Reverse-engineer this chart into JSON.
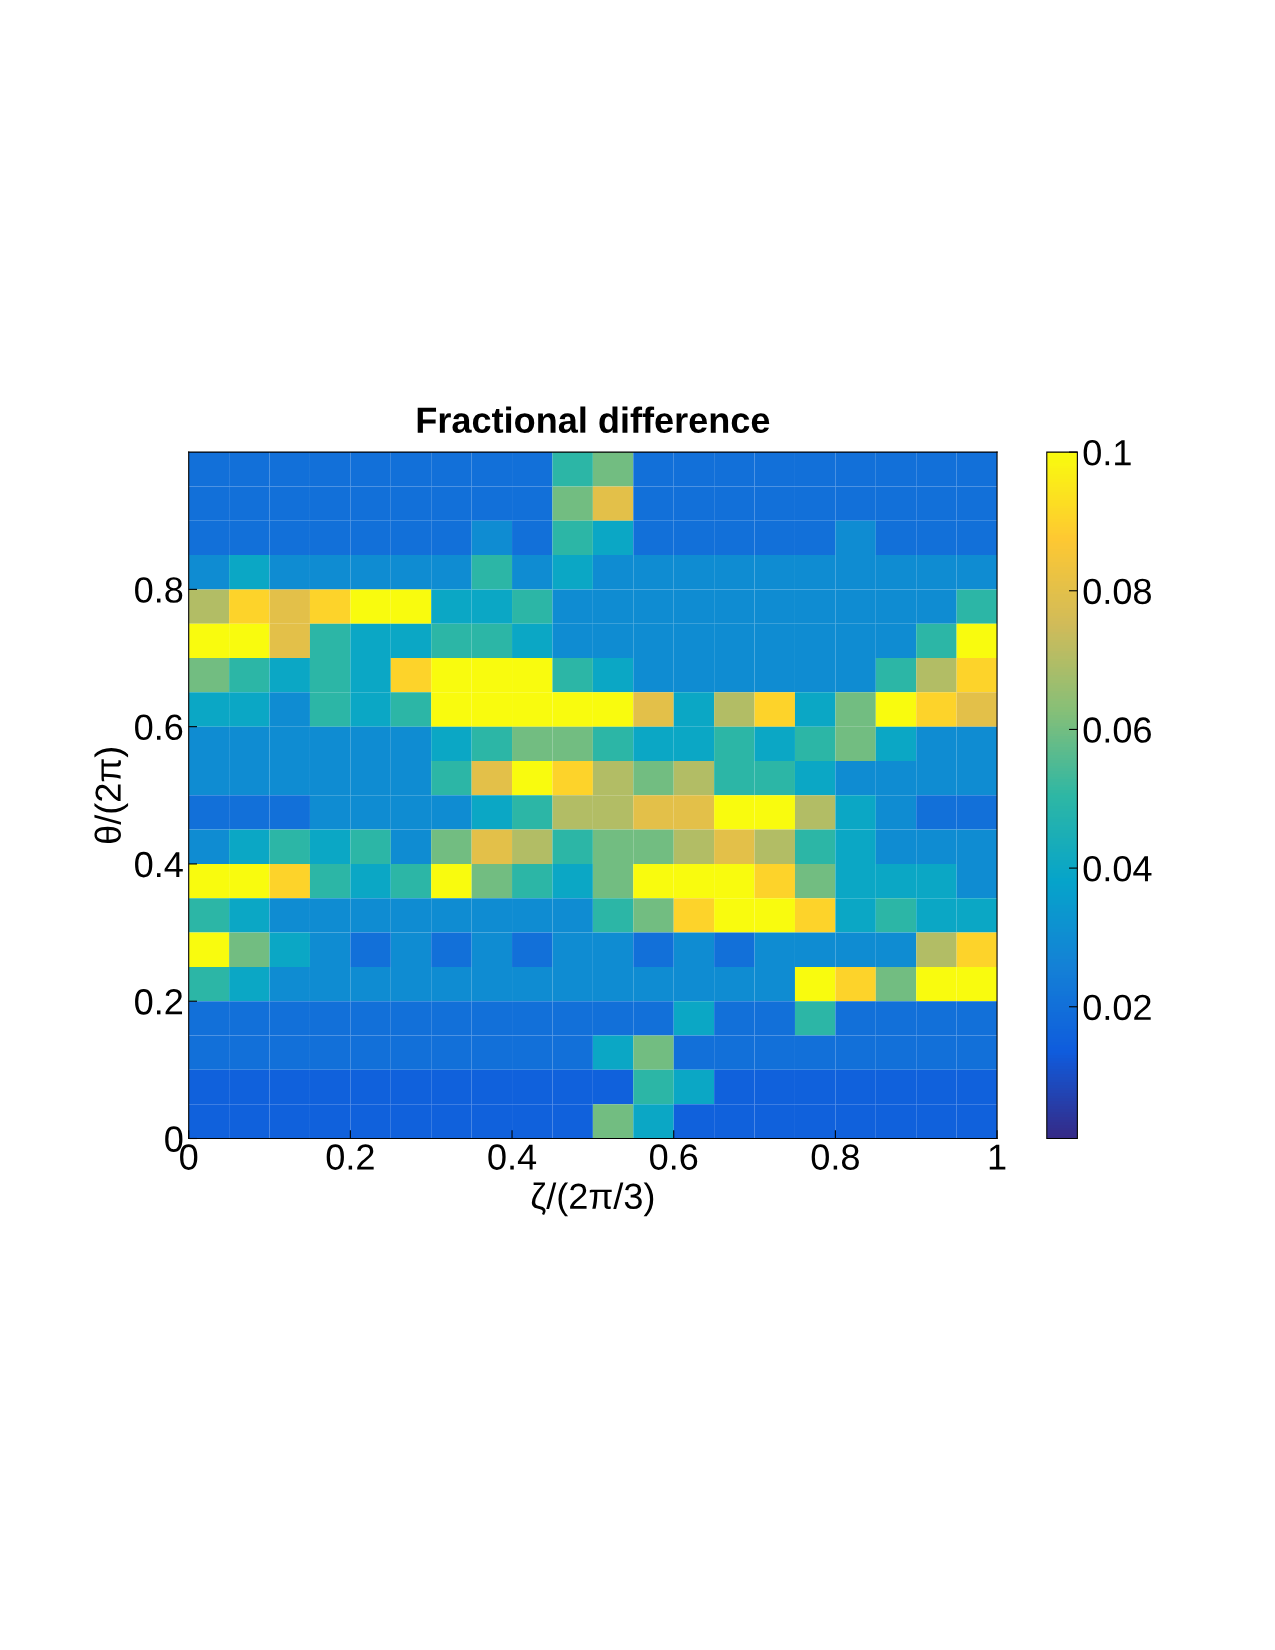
{
  "chart_data": {
    "type": "heatmap",
    "title": "Fractional difference",
    "xlabel": "ζ/(2π/3)",
    "ylabel": "θ/(2π)",
    "xlim": [
      0,
      1
    ],
    "ylim": [
      0,
      1
    ],
    "xticks": [
      0,
      0.2,
      0.4,
      0.6,
      0.8,
      1
    ],
    "yticks": [
      0,
      0.2,
      0.4,
      0.6,
      0.8
    ],
    "clim": [
      0.001,
      0.1
    ],
    "cticks": [
      0.02,
      0.04,
      0.06,
      0.08,
      0.1
    ],
    "cells": [
      [
        0.02,
        0.02,
        0.02,
        0.02,
        0.02,
        0.02,
        0.02,
        0.02,
        0.02,
        0.05,
        0.06,
        0.02,
        0.02,
        0.02,
        0.02,
        0.02,
        0.02,
        0.02,
        0.02,
        0.02
      ],
      [
        0.02,
        0.02,
        0.02,
        0.02,
        0.02,
        0.02,
        0.02,
        0.02,
        0.02,
        0.06,
        0.08,
        0.02,
        0.02,
        0.02,
        0.02,
        0.02,
        0.02,
        0.02,
        0.02,
        0.02
      ],
      [
        0.02,
        0.02,
        0.02,
        0.02,
        0.02,
        0.02,
        0.02,
        0.03,
        0.02,
        0.05,
        0.04,
        0.02,
        0.02,
        0.02,
        0.02,
        0.02,
        0.03,
        0.02,
        0.02,
        0.02
      ],
      [
        0.03,
        0.04,
        0.03,
        0.03,
        0.03,
        0.03,
        0.03,
        0.05,
        0.03,
        0.04,
        0.03,
        0.03,
        0.03,
        0.03,
        0.03,
        0.03,
        0.03,
        0.03,
        0.03,
        0.03
      ],
      [
        0.07,
        0.09,
        0.08,
        0.09,
        0.1,
        0.1,
        0.04,
        0.04,
        0.05,
        0.03,
        0.03,
        0.03,
        0.03,
        0.03,
        0.03,
        0.03,
        0.03,
        0.03,
        0.03,
        0.05
      ],
      [
        0.1,
        0.1,
        0.08,
        0.05,
        0.04,
        0.04,
        0.05,
        0.05,
        0.04,
        0.03,
        0.03,
        0.03,
        0.03,
        0.03,
        0.03,
        0.03,
        0.03,
        0.03,
        0.05,
        0.1
      ],
      [
        0.06,
        0.05,
        0.04,
        0.05,
        0.04,
        0.09,
        0.1,
        0.1,
        0.1,
        0.05,
        0.04,
        0.03,
        0.03,
        0.03,
        0.03,
        0.03,
        0.03,
        0.05,
        0.07,
        0.09
      ],
      [
        0.04,
        0.04,
        0.03,
        0.05,
        0.04,
        0.05,
        0.1,
        0.1,
        0.1,
        0.1,
        0.1,
        0.08,
        0.04,
        0.07,
        0.09,
        0.04,
        0.06,
        0.1,
        0.09,
        0.08
      ],
      [
        0.03,
        0.03,
        0.03,
        0.03,
        0.03,
        0.03,
        0.04,
        0.05,
        0.06,
        0.06,
        0.05,
        0.04,
        0.04,
        0.05,
        0.04,
        0.05,
        0.06,
        0.04,
        0.03,
        0.03
      ],
      [
        0.03,
        0.03,
        0.03,
        0.03,
        0.03,
        0.03,
        0.05,
        0.08,
        0.1,
        0.09,
        0.07,
        0.06,
        0.07,
        0.05,
        0.05,
        0.04,
        0.03,
        0.03,
        0.03,
        0.03
      ],
      [
        0.02,
        0.02,
        0.02,
        0.03,
        0.03,
        0.03,
        0.03,
        0.04,
        0.05,
        0.07,
        0.07,
        0.08,
        0.08,
        0.1,
        0.1,
        0.07,
        0.04,
        0.03,
        0.02,
        0.02
      ],
      [
        0.03,
        0.04,
        0.05,
        0.04,
        0.05,
        0.03,
        0.06,
        0.08,
        0.07,
        0.05,
        0.06,
        0.06,
        0.07,
        0.08,
        0.07,
        0.05,
        0.04,
        0.03,
        0.03,
        0.03
      ],
      [
        0.1,
        0.1,
        0.09,
        0.05,
        0.04,
        0.05,
        0.1,
        0.06,
        0.05,
        0.04,
        0.06,
        0.1,
        0.1,
        0.1,
        0.09,
        0.06,
        0.04,
        0.04,
        0.04,
        0.03
      ],
      [
        0.05,
        0.04,
        0.03,
        0.03,
        0.03,
        0.03,
        0.03,
        0.03,
        0.03,
        0.03,
        0.05,
        0.06,
        0.09,
        0.1,
        0.1,
        0.09,
        0.04,
        0.05,
        0.04,
        0.04
      ],
      [
        0.1,
        0.06,
        0.04,
        0.03,
        0.02,
        0.03,
        0.02,
        0.03,
        0.02,
        0.03,
        0.03,
        0.02,
        0.03,
        0.02,
        0.03,
        0.03,
        0.03,
        0.03,
        0.07,
        0.09
      ],
      [
        0.05,
        0.04,
        0.03,
        0.03,
        0.03,
        0.03,
        0.03,
        0.03,
        0.03,
        0.03,
        0.03,
        0.03,
        0.03,
        0.03,
        0.03,
        0.1,
        0.09,
        0.06,
        0.1,
        0.1
      ],
      [
        0.02,
        0.02,
        0.02,
        0.02,
        0.02,
        0.02,
        0.02,
        0.02,
        0.02,
        0.02,
        0.02,
        0.02,
        0.04,
        0.02,
        0.02,
        0.05,
        0.02,
        0.02,
        0.02,
        0.02
      ],
      [
        0.02,
        0.02,
        0.02,
        0.02,
        0.02,
        0.02,
        0.02,
        0.02,
        0.02,
        0.02,
        0.04,
        0.06,
        0.02,
        0.02,
        0.02,
        0.02,
        0.02,
        0.02,
        0.02,
        0.02
      ],
      [
        0.015,
        0.015,
        0.015,
        0.015,
        0.015,
        0.015,
        0.015,
        0.015,
        0.015,
        0.015,
        0.015,
        0.05,
        0.04,
        0.015,
        0.015,
        0.015,
        0.015,
        0.015,
        0.015,
        0.015
      ],
      [
        0.015,
        0.015,
        0.015,
        0.015,
        0.015,
        0.015,
        0.015,
        0.015,
        0.015,
        0.015,
        0.06,
        0.04,
        0.015,
        0.015,
        0.015,
        0.015,
        0.015,
        0.015,
        0.015,
        0.015
      ]
    ]
  }
}
